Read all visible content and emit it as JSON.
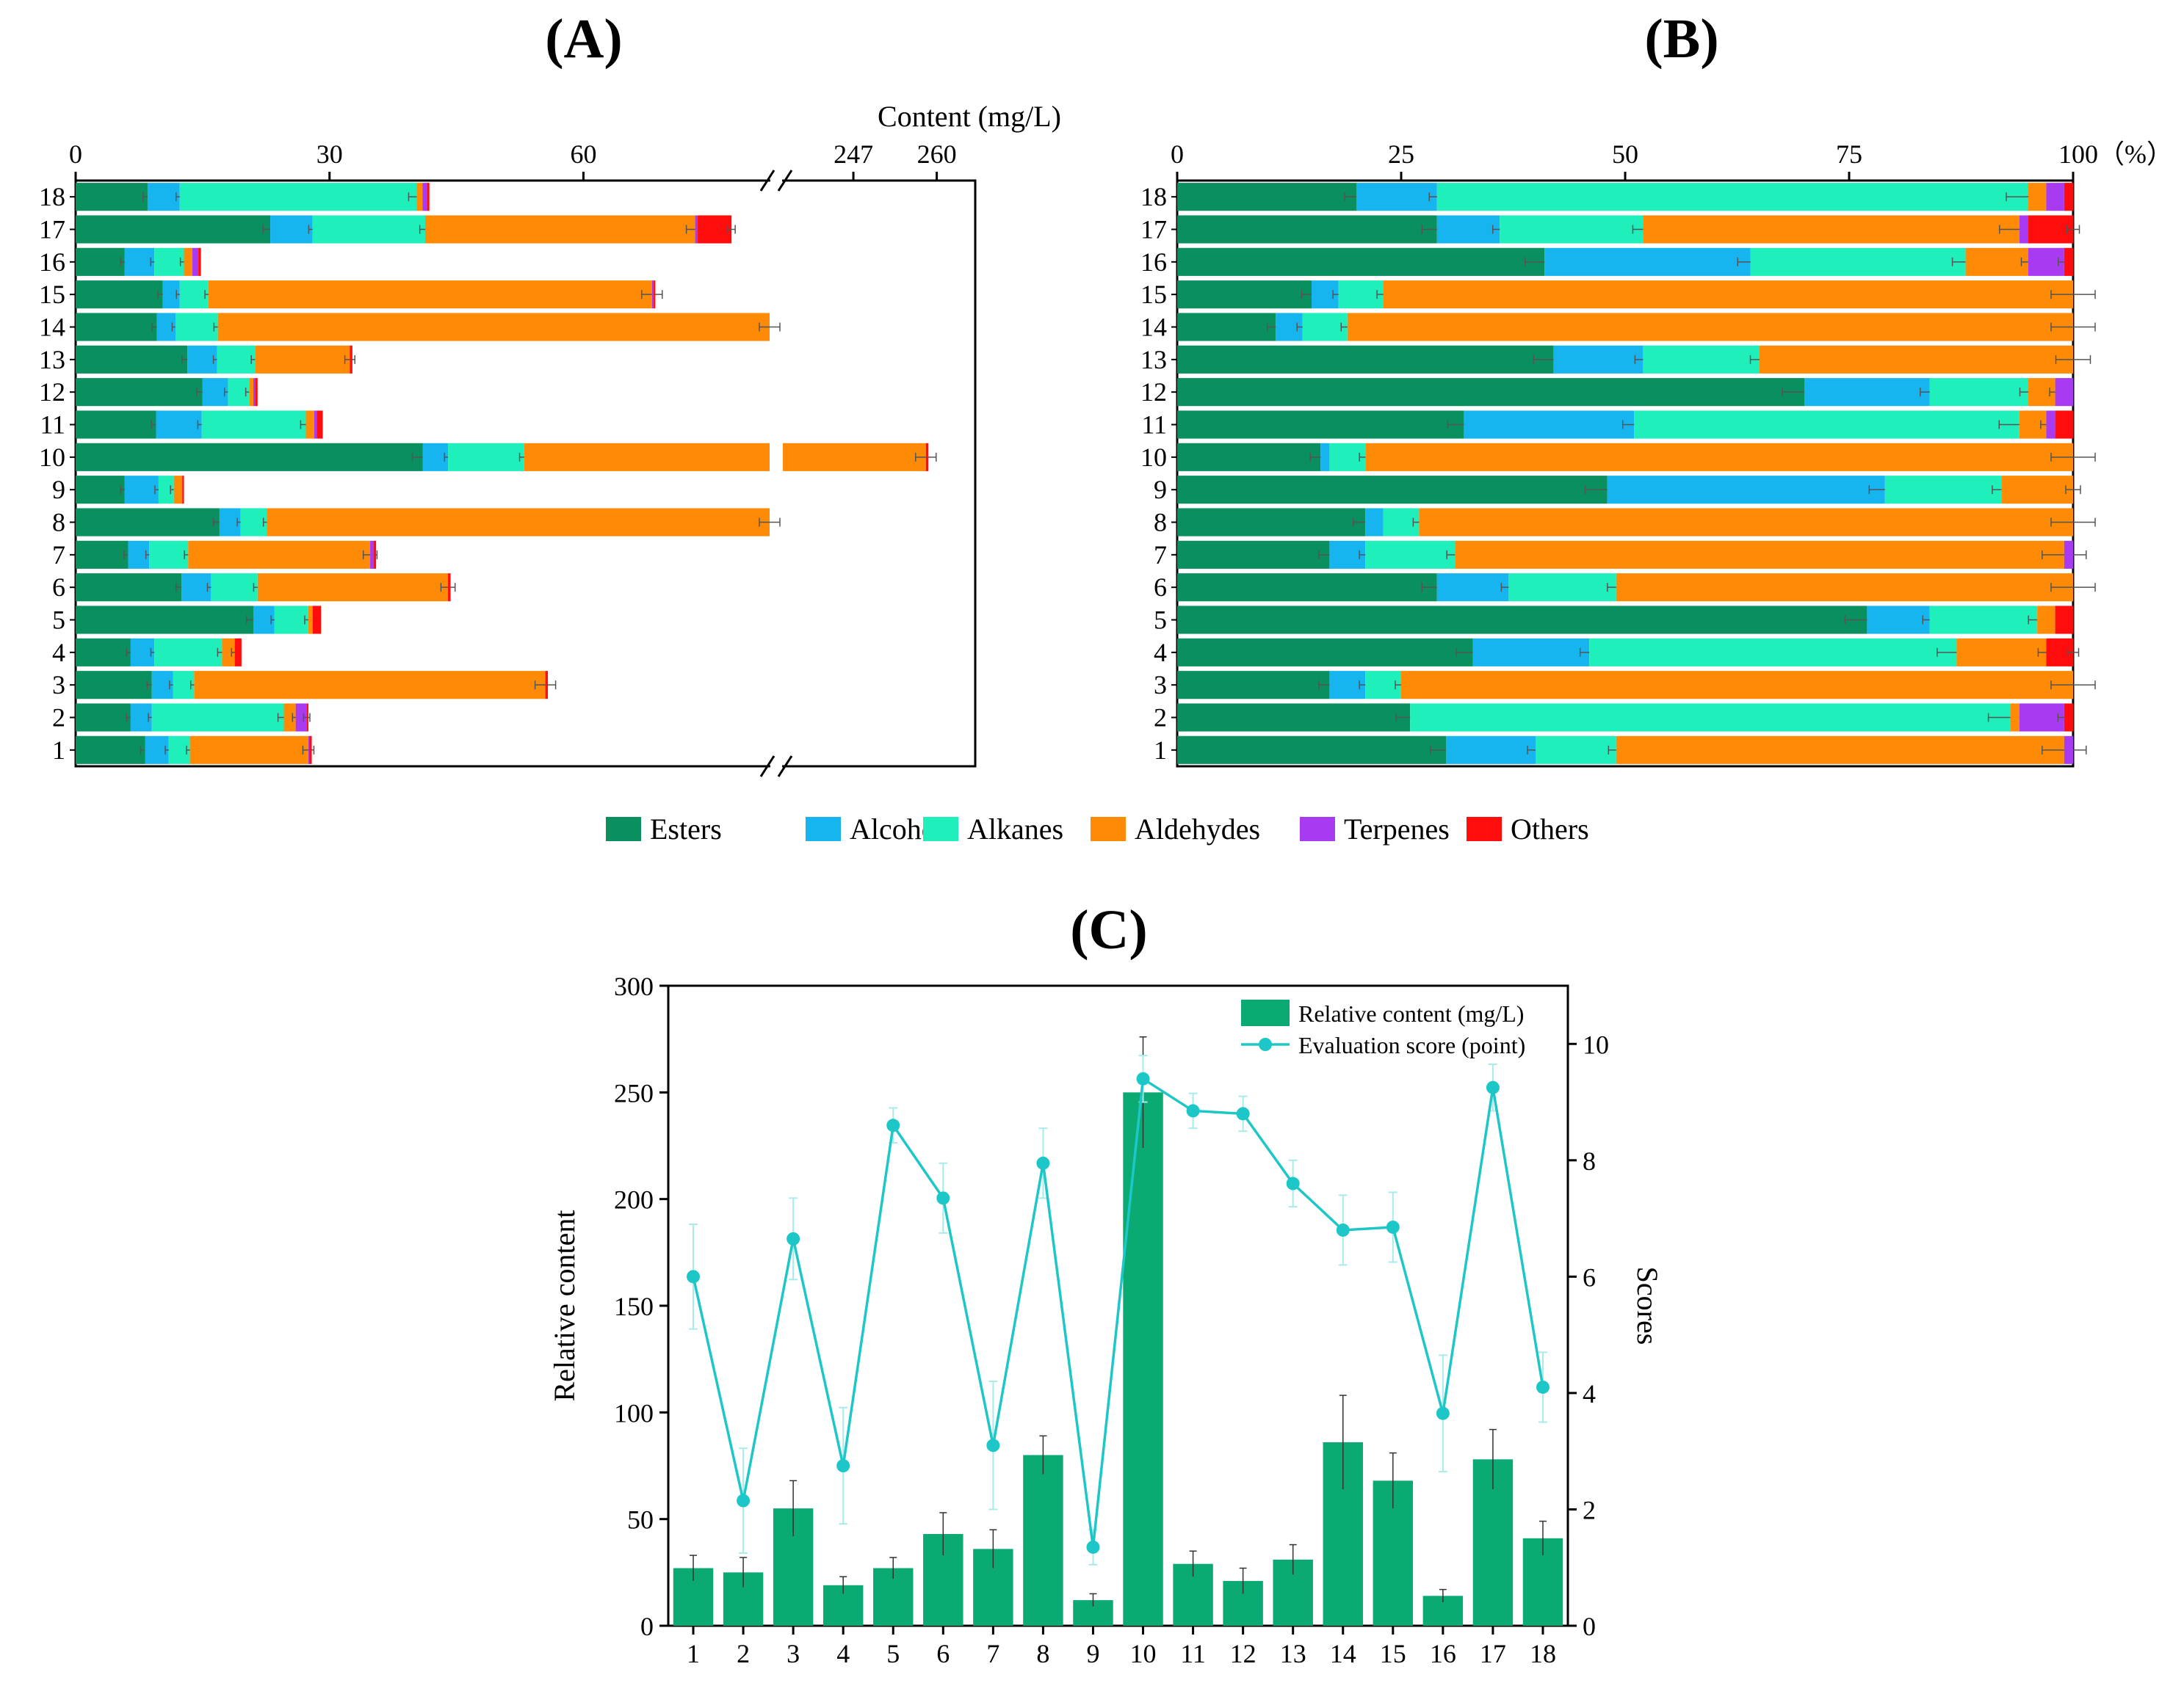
{
  "panels": {
    "a_label": "(A)",
    "b_label": "(B)",
    "c_label": "(C)"
  },
  "categories": [
    "Esters",
    "Alcohols",
    "Alkanes",
    "Aldehydes",
    "Terpenes",
    "Others"
  ],
  "colors": {
    "Esters": "#0a8f5e",
    "Alcohols": "#17b5f0",
    "Alkanes": "#1ff0bb",
    "Aldehydes": "#ff8a05",
    "Terpenes": "#a83bf2",
    "Others": "#ff0d0d",
    "bar": "#0aaa72",
    "line": "#1ec7c7",
    "errA": "#555555"
  },
  "chart_data": [
    {
      "type": "bar",
      "orientation": "horizontal-stacked",
      "title": "(A)",
      "xlabel": "Content (mg/L)",
      "x_ticks": [
        "0",
        "30",
        "60",
        "247",
        "260"
      ],
      "axis_break": [
        82,
        236
      ],
      "samples": [
        "1",
        "2",
        "3",
        "4",
        "5",
        "6",
        "7",
        "8",
        "9",
        "10",
        "11",
        "12",
        "13",
        "14",
        "15",
        "16",
        "17",
        "18"
      ],
      "series": [
        {
          "name": "Esters",
          "values": [
            8.2,
            6.5,
            9,
            6.5,
            21,
            12.5,
            6.2,
            17,
            5.8,
            41,
            9.5,
            15,
            13.2,
            9.6,
            10.3,
            5.8,
            23,
            8.5
          ]
        },
        {
          "name": "Alcohols",
          "values": [
            2.8,
            2.5,
            2.5,
            2.8,
            2.5,
            3.5,
            2.5,
            2.5,
            4,
            3,
            5.4,
            3,
            3.5,
            2.2,
            2,
            3.5,
            5,
            3.8
          ]
        },
        {
          "name": "Alkanes",
          "values": [
            2.5,
            15.6,
            2.5,
            8,
            4,
            5.5,
            4.6,
            3.1,
            1.8,
            9,
            12.3,
            2.5,
            4.5,
            5,
            3.4,
            3.5,
            13.3,
            28
          ]
        },
        {
          "name": "Aldehydes",
          "values": [
            14,
            1.4,
            41.5,
            1.5,
            0.5,
            22.5,
            21.5,
            59.7,
            1,
            205.3,
            1,
            0.5,
            11.2,
            70.3,
            52.4,
            1,
            31.9,
            0.7
          ]
        },
        {
          "name": "Terpenes",
          "values": [
            0.1,
            1.3,
            0,
            0,
            0,
            0,
            0.4,
            0.3,
            0,
            0,
            0.3,
            0.2,
            0,
            0,
            0.2,
            0.7,
            0.3,
            0.5
          ]
        },
        {
          "name": "Others",
          "values": [
            0.3,
            0.2,
            0.3,
            0.8,
            1,
            0.3,
            0.3,
            0.3,
            0.2,
            0.4,
            0.7,
            0.3,
            0.3,
            0.4,
            0.2,
            0.3,
            4,
            0.3
          ]
        }
      ]
    },
    {
      "type": "bar",
      "orientation": "horizontal-stacked-percent",
      "title": "(B)",
      "xlabel": "100（%）",
      "x_ticks": [
        "0",
        "25",
        "50",
        "75"
      ],
      "samples": [
        "1",
        "2",
        "3",
        "4",
        "5",
        "6",
        "7",
        "8",
        "9",
        "10",
        "11",
        "12",
        "13",
        "14",
        "15",
        "16",
        "17",
        "18"
      ],
      "series": [
        {
          "name": "Esters",
          "values": [
            30,
            26,
            17,
            33,
            77,
            29,
            17,
            21,
            48,
            16,
            32,
            70,
            42,
            11,
            15,
            41,
            29,
            20
          ]
        },
        {
          "name": "Alcohols",
          "values": [
            10,
            0,
            4,
            13,
            7,
            8,
            4,
            2,
            31,
            1,
            19,
            14,
            10,
            3,
            3,
            23,
            7,
            9
          ]
        },
        {
          "name": "Alkanes",
          "values": [
            9,
            67,
            4,
            41,
            12,
            12,
            10,
            4,
            13,
            4,
            43,
            11,
            13,
            5,
            5,
            24,
            16,
            66
          ]
        },
        {
          "name": "Aldehydes",
          "values": [
            50,
            1,
            75,
            10,
            2,
            51,
            68,
            73,
            8,
            79,
            3,
            3,
            35,
            81,
            77,
            7,
            42,
            2
          ]
        },
        {
          "name": "Terpenes",
          "values": [
            1,
            5,
            0,
            0,
            0,
            0,
            1,
            0,
            0,
            0,
            1,
            2,
            0,
            0,
            0,
            4,
            1,
            2
          ]
        },
        {
          "name": "Others",
          "values": [
            0,
            1,
            0,
            3,
            2,
            0,
            0,
            0,
            0,
            0,
            2,
            0,
            0,
            0,
            0,
            1,
            5,
            1
          ]
        }
      ]
    },
    {
      "type": "bar",
      "title": "(C)",
      "categories": [
        "1",
        "2",
        "3",
        "4",
        "5",
        "6",
        "7",
        "8",
        "9",
        "10",
        "11",
        "12",
        "13",
        "14",
        "15",
        "16",
        "17",
        "18"
      ],
      "series": [
        {
          "name": "Relative content (mg/L)",
          "type": "bar",
          "axis": "left",
          "values": [
            27,
            25,
            55,
            19,
            27,
            43,
            36,
            80,
            12,
            250,
            29,
            21,
            31,
            86,
            68,
            14,
            78,
            41
          ],
          "errors": [
            6,
            7,
            13,
            4,
            5,
            10,
            9,
            9,
            3,
            26,
            6,
            6,
            7,
            22,
            13,
            3,
            14,
            8
          ]
        },
        {
          "name": "Evaluation score (point)",
          "type": "line",
          "axis": "right",
          "values": [
            6,
            2.15,
            6.65,
            2.75,
            8.6,
            7.35,
            3.1,
            7.95,
            1.35,
            9.4,
            8.85,
            8.8,
            7.6,
            6.8,
            6.85,
            3.65,
            9.25,
            4.1
          ],
          "errors": [
            0.9,
            0.9,
            0.7,
            1.0,
            0.3,
            0.6,
            1.1,
            0.6,
            0.3,
            0.4,
            0.3,
            0.3,
            0.4,
            0.6,
            0.6,
            1.0,
            0.4,
            0.6
          ]
        }
      ],
      "ylabel": "Relative content",
      "y2label": "Scores",
      "ylim": [
        0,
        300
      ],
      "y2lim": [
        0,
        11
      ],
      "y_ticks": [
        "0",
        "50",
        "100",
        "150",
        "200",
        "250",
        "300"
      ],
      "y2_ticks": [
        "0",
        "2",
        "4",
        "6",
        "8",
        "10"
      ]
    }
  ]
}
